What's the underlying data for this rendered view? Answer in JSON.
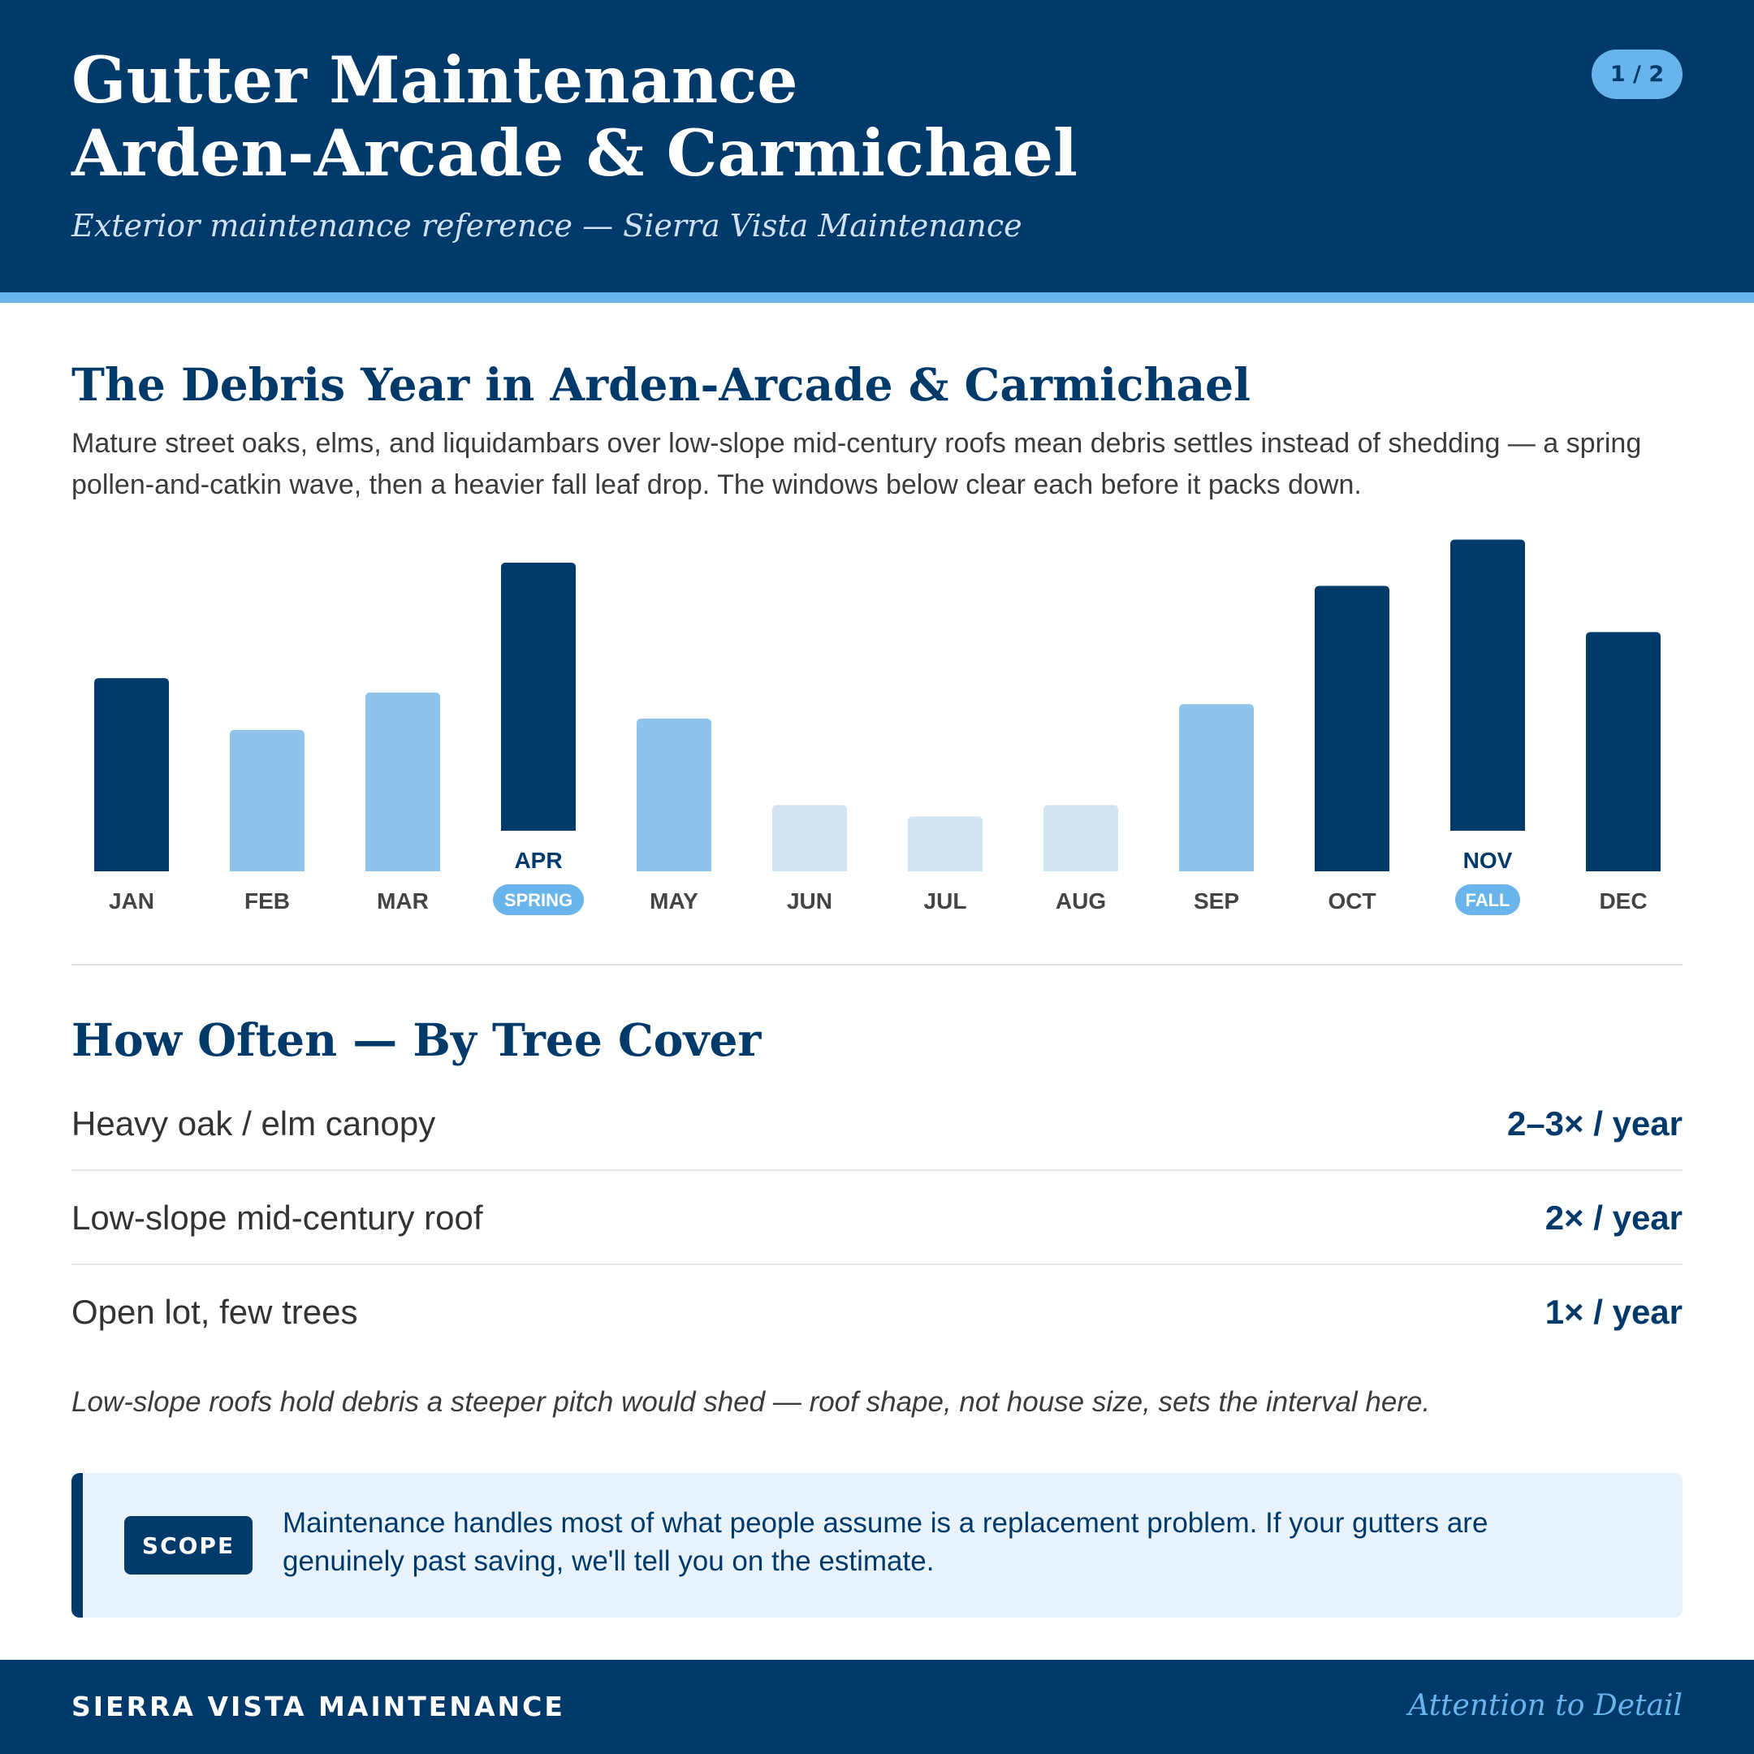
{
  "header": {
    "title_line1": "Gutter Maintenance",
    "title_line2": "Arden-Arcade & Carmichael",
    "subtitle": "Exterior maintenance reference — Sierra Vista Maintenance",
    "page_indicator": "1 / 2"
  },
  "debris_section": {
    "title": "The Debris Year in Arden-Arcade & Carmichael",
    "intro": "Mature street oaks, elms, and liquidambars over low-slope mid-century roofs mean debris settles instead of shedding — a spring pollen-and-catkin wave, then a heavier fall leaf drop. The windows below clear each before it packs down."
  },
  "chart_data": {
    "type": "bar",
    "categories": [
      "JAN",
      "FEB",
      "MAR",
      "APR",
      "MAY",
      "JUN",
      "JUL",
      "AUG",
      "SEP",
      "OCT",
      "NOV",
      "DEC"
    ],
    "values": [
      67,
      49,
      62,
      93,
      53,
      23,
      19,
      23,
      58,
      99,
      101,
      83
    ],
    "levels": [
      "high",
      "medium",
      "medium",
      "high",
      "medium",
      "low",
      "low",
      "low",
      "medium",
      "high",
      "high",
      "high"
    ],
    "highlights": [
      {
        "month": "APR",
        "label": "SPRING"
      },
      {
        "month": "NOV",
        "label": "FALL"
      }
    ],
    "colors": {
      "high": "#003a6b",
      "medium": "#8ec4ec",
      "low": "#d2e3f1",
      "badge": "#69b4ea",
      "label": "#444444",
      "highlight_label": "#003a6b"
    },
    "title": "",
    "xlabel": "",
    "ylabel": "",
    "grid": false
  },
  "frequency_section": {
    "title": "How Often — By Tree Cover",
    "rows": [
      {
        "label": "Heavy oak / elm canopy",
        "value": "2–3× / year"
      },
      {
        "label": "Low-slope mid-century roof",
        "value": "2× / year"
      },
      {
        "label": "Open lot, few trees",
        "value": "1× / year"
      }
    ],
    "note": "Low-slope roofs hold debris a steeper pitch would shed — roof shape, not house size, sets the interval here."
  },
  "scope": {
    "tag": "SCOPE",
    "text": "Maintenance handles most of what people assume is a replacement problem. If your gutters are genuinely past saving, we'll tell you on the estimate."
  },
  "footer": {
    "brand": "SIERRA VISTA MAINTENANCE",
    "tagline": "Attention to Detail"
  }
}
